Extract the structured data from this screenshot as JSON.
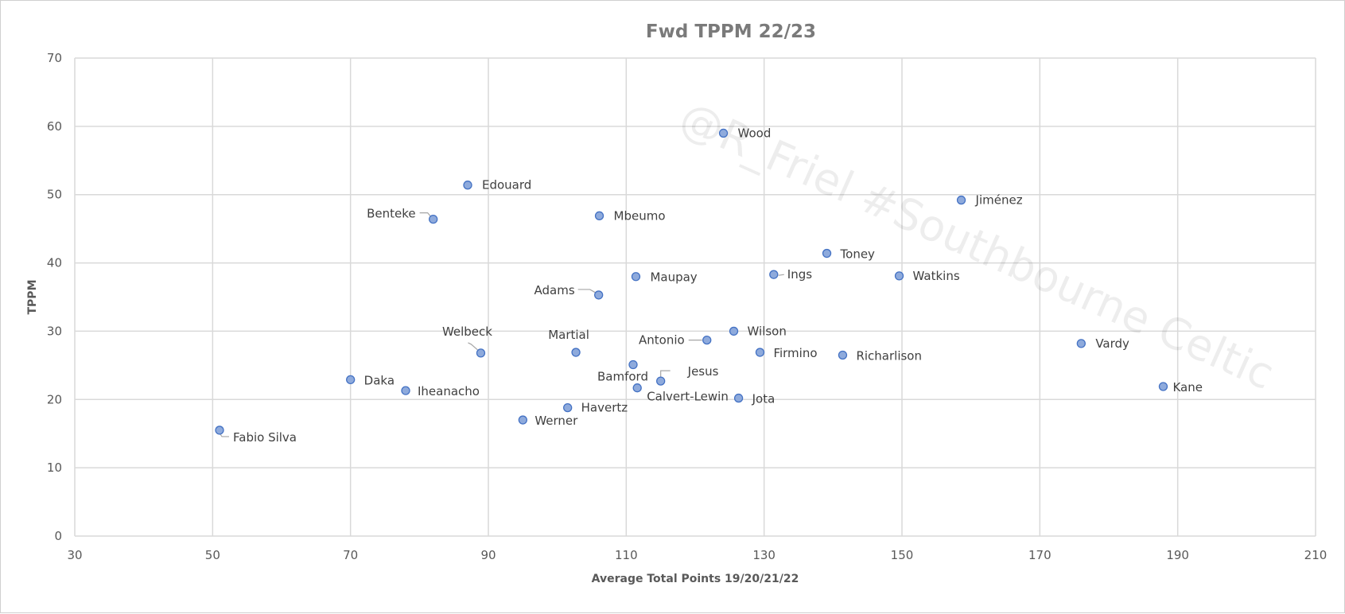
{
  "chart_data": {
    "type": "scatter",
    "title": "Fwd TPPM  22/23",
    "xlabel": "Average Total Points 19/20/21/22",
    "ylabel": "TPPM",
    "xlim": [
      30,
      210
    ],
    "ylim": [
      0,
      70
    ],
    "xticks": [
      30,
      50,
      70,
      90,
      110,
      130,
      150,
      170,
      190,
      210
    ],
    "yticks": [
      0,
      10,
      20,
      30,
      40,
      50,
      60,
      70
    ],
    "grid": true,
    "legend": "none",
    "point_color": "#8eaadc",
    "point_stroke": "#4472c4",
    "watermark": "@R_Friel #Southbourne Celtic",
    "points": [
      {
        "label": "Wood",
        "x": 124.1,
        "y": 59.0
      },
      {
        "label": "Edouard",
        "x": 87.0,
        "y": 51.4
      },
      {
        "label": "Benteke",
        "x": 82.0,
        "y": 46.4
      },
      {
        "label": "Mbeumo",
        "x": 106.1,
        "y": 46.9
      },
      {
        "label": "Jiménez",
        "x": 158.6,
        "y": 49.2
      },
      {
        "label": "Toney",
        "x": 139.1,
        "y": 41.4
      },
      {
        "label": "Ings",
        "x": 131.4,
        "y": 38.3
      },
      {
        "label": "Watkins",
        "x": 149.6,
        "y": 38.1
      },
      {
        "label": "Maupay",
        "x": 111.4,
        "y": 38.0
      },
      {
        "label": "Adams",
        "x": 106.0,
        "y": 35.3
      },
      {
        "label": "Wilson",
        "x": 125.6,
        "y": 30.0
      },
      {
        "label": "Antonio",
        "x": 121.7,
        "y": 28.7
      },
      {
        "label": "Vardy",
        "x": 176.0,
        "y": 28.2
      },
      {
        "label": "Welbeck",
        "x": 88.9,
        "y": 26.8
      },
      {
        "label": "Martial",
        "x": 102.7,
        "y": 26.9
      },
      {
        "label": "Firmino",
        "x": 129.4,
        "y": 26.9
      },
      {
        "label": "Richarlison",
        "x": 141.4,
        "y": 26.5
      },
      {
        "label": "Bamford",
        "x": 111.0,
        "y": 25.1
      },
      {
        "label": "Jesus",
        "x": 115.0,
        "y": 22.7
      },
      {
        "label": "Daka",
        "x": 70.0,
        "y": 22.9
      },
      {
        "label": "Kane",
        "x": 187.9,
        "y": 21.9
      },
      {
        "label": "Iheanacho",
        "x": 78.0,
        "y": 21.3
      },
      {
        "label": "Calvert-Lewin",
        "x": 111.6,
        "y": 21.7
      },
      {
        "label": "Jota",
        "x": 126.3,
        "y": 20.2
      },
      {
        "label": "Havertz",
        "x": 101.5,
        "y": 18.8
      },
      {
        "label": "Werner",
        "x": 95.0,
        "y": 17.0
      },
      {
        "label": "Fabio Silva",
        "x": 51.0,
        "y": 15.5
      }
    ]
  }
}
